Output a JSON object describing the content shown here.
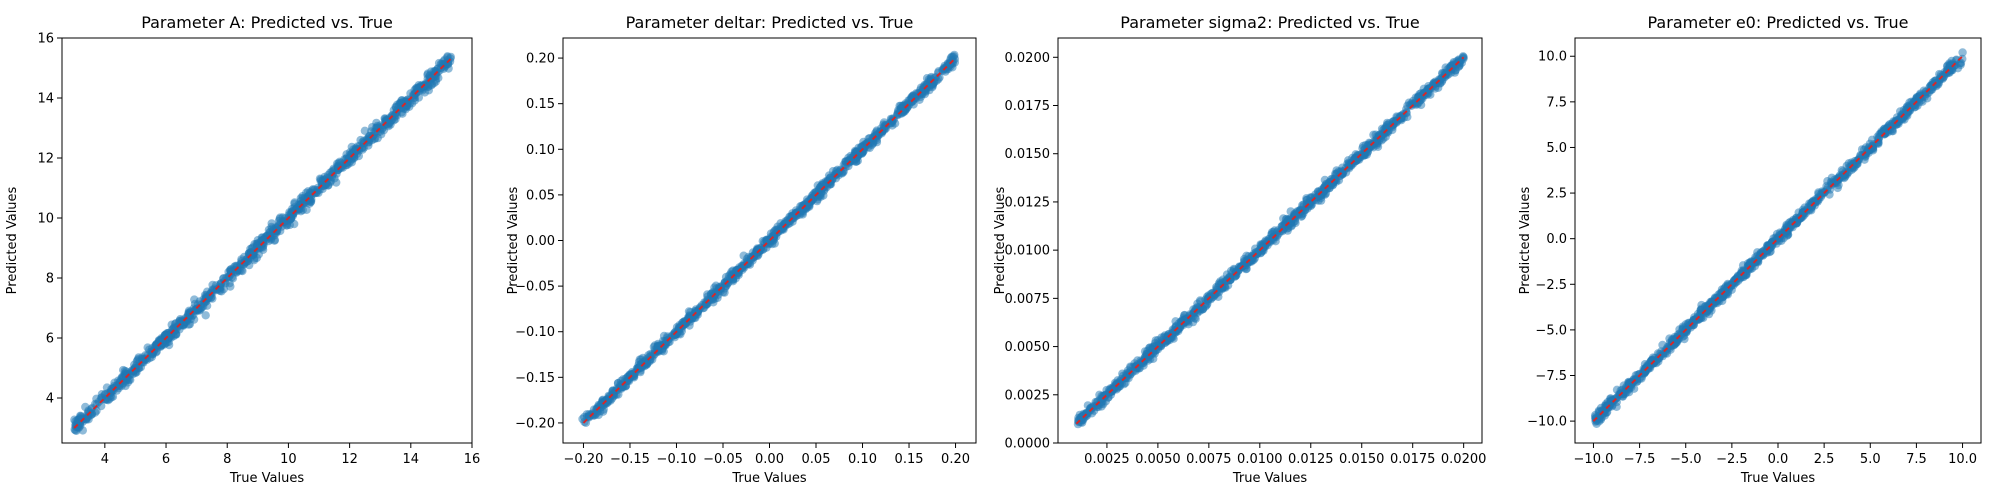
{
  "chart_data": [
    {
      "type": "scatter",
      "title": "Parameter A: Predicted vs. True",
      "xlabel": "True Values",
      "ylabel": "Predicted Values",
      "xlim": [
        2.6,
        16.0
      ],
      "ylim": [
        2.5,
        16.0
      ],
      "xticks": [
        4,
        6,
        8,
        10,
        12,
        14,
        16
      ],
      "yticks": [
        4,
        6,
        8,
        10,
        12,
        14,
        16
      ],
      "x_range": [
        3.0,
        15.3
      ],
      "noise": 0.12,
      "series": [
        {
          "kind": "points",
          "color": "#1f77b4"
        },
        {
          "kind": "ideal-line",
          "color": "#d62728",
          "x": [
            3.0,
            15.3
          ],
          "y": [
            3.0,
            15.3
          ]
        }
      ]
    },
    {
      "type": "scatter",
      "title": "Parameter deltar: Predicted vs. True",
      "xlabel": "True Values",
      "ylabel": "Predicted Values",
      "xlim": [
        -0.222,
        0.222
      ],
      "ylim": [
        -0.222,
        0.222
      ],
      "xticks": [
        -0.2,
        -0.15,
        -0.1,
        -0.05,
        0.0,
        0.05,
        0.1,
        0.15,
        0.2
      ],
      "yticks": [
        -0.2,
        -0.15,
        -0.1,
        -0.05,
        0.0,
        0.05,
        0.1,
        0.15,
        0.2
      ],
      "tick_labels": [
        "−0.20",
        "−0.15",
        "−0.10",
        "−0.05",
        "0.00",
        "0.05",
        "0.10",
        "0.15",
        "0.20"
      ],
      "x_range": [
        -0.2,
        0.2
      ],
      "noise": 0.003,
      "series": [
        {
          "kind": "points",
          "color": "#1f77b4"
        },
        {
          "kind": "ideal-line",
          "color": "#d62728",
          "x": [
            -0.2,
            0.2
          ],
          "y": [
            -0.2,
            0.2
          ]
        }
      ]
    },
    {
      "type": "scatter",
      "title": "Parameter sigma2: Predicted vs. True",
      "xlabel": "True Values",
      "ylabel": "Predicted Values",
      "xlim": [
        0.0001,
        0.0209
      ],
      "ylim": [
        0.0,
        0.021
      ],
      "xticks": [
        0.0025,
        0.005,
        0.0075,
        0.01,
        0.0125,
        0.015,
        0.0175,
        0.02
      ],
      "yticks": [
        0.0,
        0.0025,
        0.005,
        0.0075,
        0.01,
        0.0125,
        0.015,
        0.0175,
        0.02
      ],
      "x_range": [
        0.001,
        0.02
      ],
      "noise": 0.00015,
      "series": [
        {
          "kind": "points",
          "color": "#1f77b4"
        },
        {
          "kind": "ideal-line",
          "color": "#d62728",
          "x": [
            0.001,
            0.02
          ],
          "y": [
            0.001,
            0.02
          ]
        }
      ]
    },
    {
      "type": "scatter",
      "title": "Parameter e0: Predicted vs. True",
      "xlabel": "True Values",
      "ylabel": "Predicted Values",
      "xlim": [
        -11.0,
        11.0
      ],
      "ylim": [
        -11.2,
        11.0
      ],
      "xticks": [
        -10.0,
        -7.5,
        -5.0,
        -2.5,
        0.0,
        2.5,
        5.0,
        7.5,
        10.0
      ],
      "yticks": [
        -10.0,
        -7.5,
        -5.0,
        -2.5,
        0.0,
        2.5,
        5.0,
        7.5,
        10.0
      ],
      "tick_labels": [
        "−10.0",
        "−7.5",
        "−5.0",
        "−2.5",
        "0.0",
        "2.5",
        "5.0",
        "7.5",
        "10.0"
      ],
      "x_range": [
        -10.0,
        10.0
      ],
      "noise": 0.15,
      "series": [
        {
          "kind": "points",
          "color": "#1f77b4"
        },
        {
          "kind": "ideal-line",
          "color": "#d62728",
          "x": [
            -10.0,
            10.0
          ],
          "y": [
            -10.0,
            10.0
          ]
        }
      ]
    }
  ]
}
